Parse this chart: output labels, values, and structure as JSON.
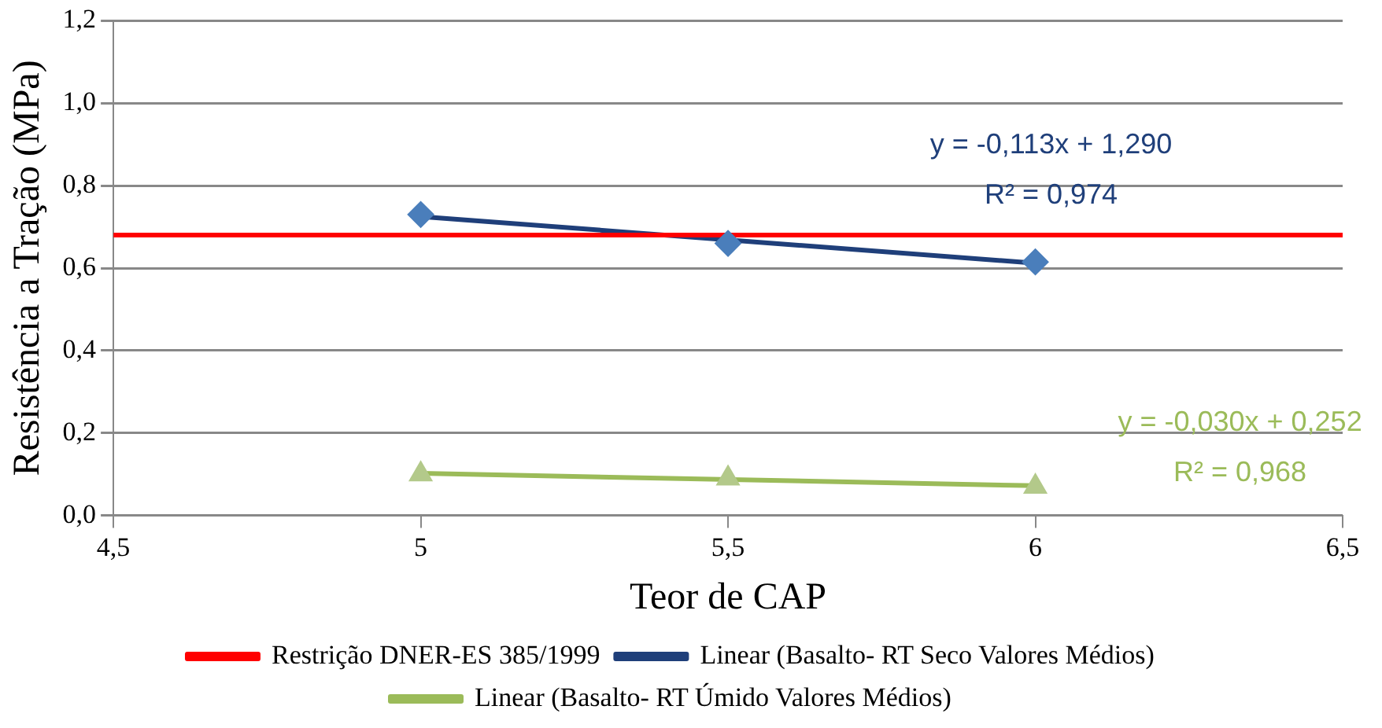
{
  "chart_data": {
    "type": "line",
    "xlabel": "Teor de CAP",
    "ylabel": "Resistência a Tração (MPa)",
    "xlim": [
      4.5,
      6.5
    ],
    "xticks": [
      {
        "value": 4.5,
        "label": "4,5"
      },
      5,
      {
        "value": 5.5,
        "label": "5,5"
      },
      6,
      {
        "value": 6.5,
        "label": "6,5"
      }
    ],
    "ylim": [
      0,
      1.2
    ],
    "yticks": [
      {
        "value": 0,
        "label": "0,0"
      },
      {
        "value": 0.2,
        "label": "0,2"
      },
      {
        "value": 0.4,
        "label": "0,4"
      },
      {
        "value": 0.6,
        "label": "0,6"
      },
      {
        "value": 0.8,
        "label": "0,8"
      },
      {
        "value": 1,
        "label": "1,0"
      },
      {
        "value": 1.2,
        "label": "1,2"
      }
    ],
    "grid": "y",
    "legend": "bottom",
    "line_style": "solid",
    "series": [
      {
        "name": "Restrição DNER-ES 385/1999",
        "color": "#ff0000",
        "x": [
          4.5,
          6.5
        ],
        "values": [
          0.68,
          0.68
        ],
        "marker": "none"
      },
      {
        "name": "Linear (Basalto- RT Seco Valores Médios)",
        "color": "#1f3f7a",
        "x": [
          5,
          6
        ],
        "values": [
          0.725,
          0.612
        ],
        "marker": "none"
      },
      {
        "name": "Linear (Basalto- RT Úmido Valores Médios)",
        "color": "#9bbb59",
        "x": [
          5,
          6
        ],
        "values": [
          0.102,
          0.072
        ],
        "marker": "none"
      },
      {
        "type": "scatter",
        "color": "#4a7ebb",
        "x": [
          5,
          5.5,
          6
        ],
        "values": [
          0.73,
          0.66,
          0.615
        ],
        "marker": "diamond"
      },
      {
        "type": "scatter",
        "color": "#b3c98a",
        "x": [
          5,
          5.5,
          6
        ],
        "values": [
          0.1,
          0.09,
          0.07
        ],
        "marker": "triangle"
      }
    ],
    "annotations": [
      "y = -0,113x + 1,290",
      "R² = 0,974",
      "y = -0,030x + 0,252",
      "R² = 0,968"
    ]
  }
}
